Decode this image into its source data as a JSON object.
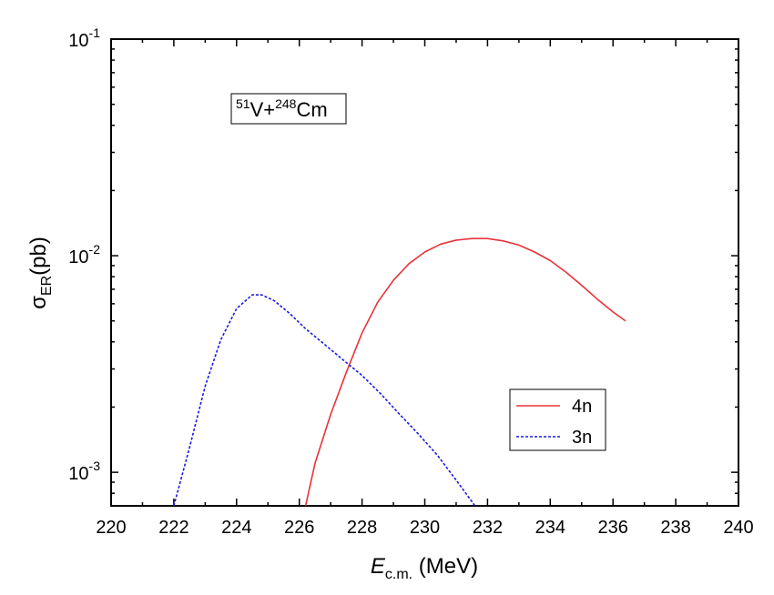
{
  "chart_data": {
    "type": "line",
    "title": "",
    "annotation": {
      "a_mass": "51",
      "a_symbol": "V+",
      "b_mass": "248",
      "b_symbol": "Cm"
    },
    "xlabel": {
      "main": "E",
      "sub": "c.m.",
      "unit": " (MeV)"
    },
    "ylabel": {
      "main": "σ",
      "sub": "ER",
      "unit": "(pb)"
    },
    "x_scale": "linear",
    "y_scale": "log",
    "xlim": [
      220,
      240
    ],
    "ylim": [
      0.0007,
      0.1
    ],
    "x_ticks": [
      220,
      222,
      224,
      226,
      228,
      230,
      232,
      234,
      236,
      238,
      240
    ],
    "x_tick_labels": [
      "220",
      "222",
      "224",
      "226",
      "228",
      "230",
      "232",
      "234",
      "236",
      "238",
      "240"
    ],
    "y_ticks": [
      {
        "value": 0.001,
        "base": "10",
        "exp": "-3"
      },
      {
        "value": 0.01,
        "base": "10",
        "exp": "-2"
      },
      {
        "value": 0.1,
        "base": "10",
        "exp": "-1"
      }
    ],
    "legend_position": "bottom-right",
    "series": [
      {
        "name": "4n",
        "color": "#e8333a",
        "dash": "solid",
        "x": [
          226.2,
          226.5,
          227.0,
          227.5,
          228.0,
          228.5,
          229.0,
          229.5,
          230.0,
          230.5,
          231.0,
          231.5,
          232.0,
          232.5,
          233.0,
          233.5,
          234.0,
          234.5,
          235.0,
          235.5,
          236.0,
          236.4
        ],
        "y": [
          0.0007,
          0.0011,
          0.00185,
          0.0029,
          0.0044,
          0.0061,
          0.0077,
          0.0092,
          0.0104,
          0.0113,
          0.0118,
          0.012,
          0.012,
          0.0117,
          0.0112,
          0.0104,
          0.0095,
          0.0084,
          0.0073,
          0.0063,
          0.0055,
          0.005
        ]
      },
      {
        "name": "3n",
        "color": "#1a1adf",
        "dash": "dashed",
        "x": [
          222.0,
          222.5,
          223.0,
          223.5,
          224.0,
          224.5,
          224.8,
          225.2,
          225.7,
          226.2,
          226.8,
          227.4,
          228.0,
          228.6,
          229.2,
          229.8,
          230.4,
          231.0,
          231.6
        ],
        "y": [
          0.0007,
          0.0013,
          0.0025,
          0.0041,
          0.0057,
          0.0066,
          0.0066,
          0.0062,
          0.0054,
          0.0046,
          0.0039,
          0.0033,
          0.0028,
          0.0023,
          0.00185,
          0.0015,
          0.0012,
          0.00092,
          0.0007
        ]
      }
    ]
  }
}
